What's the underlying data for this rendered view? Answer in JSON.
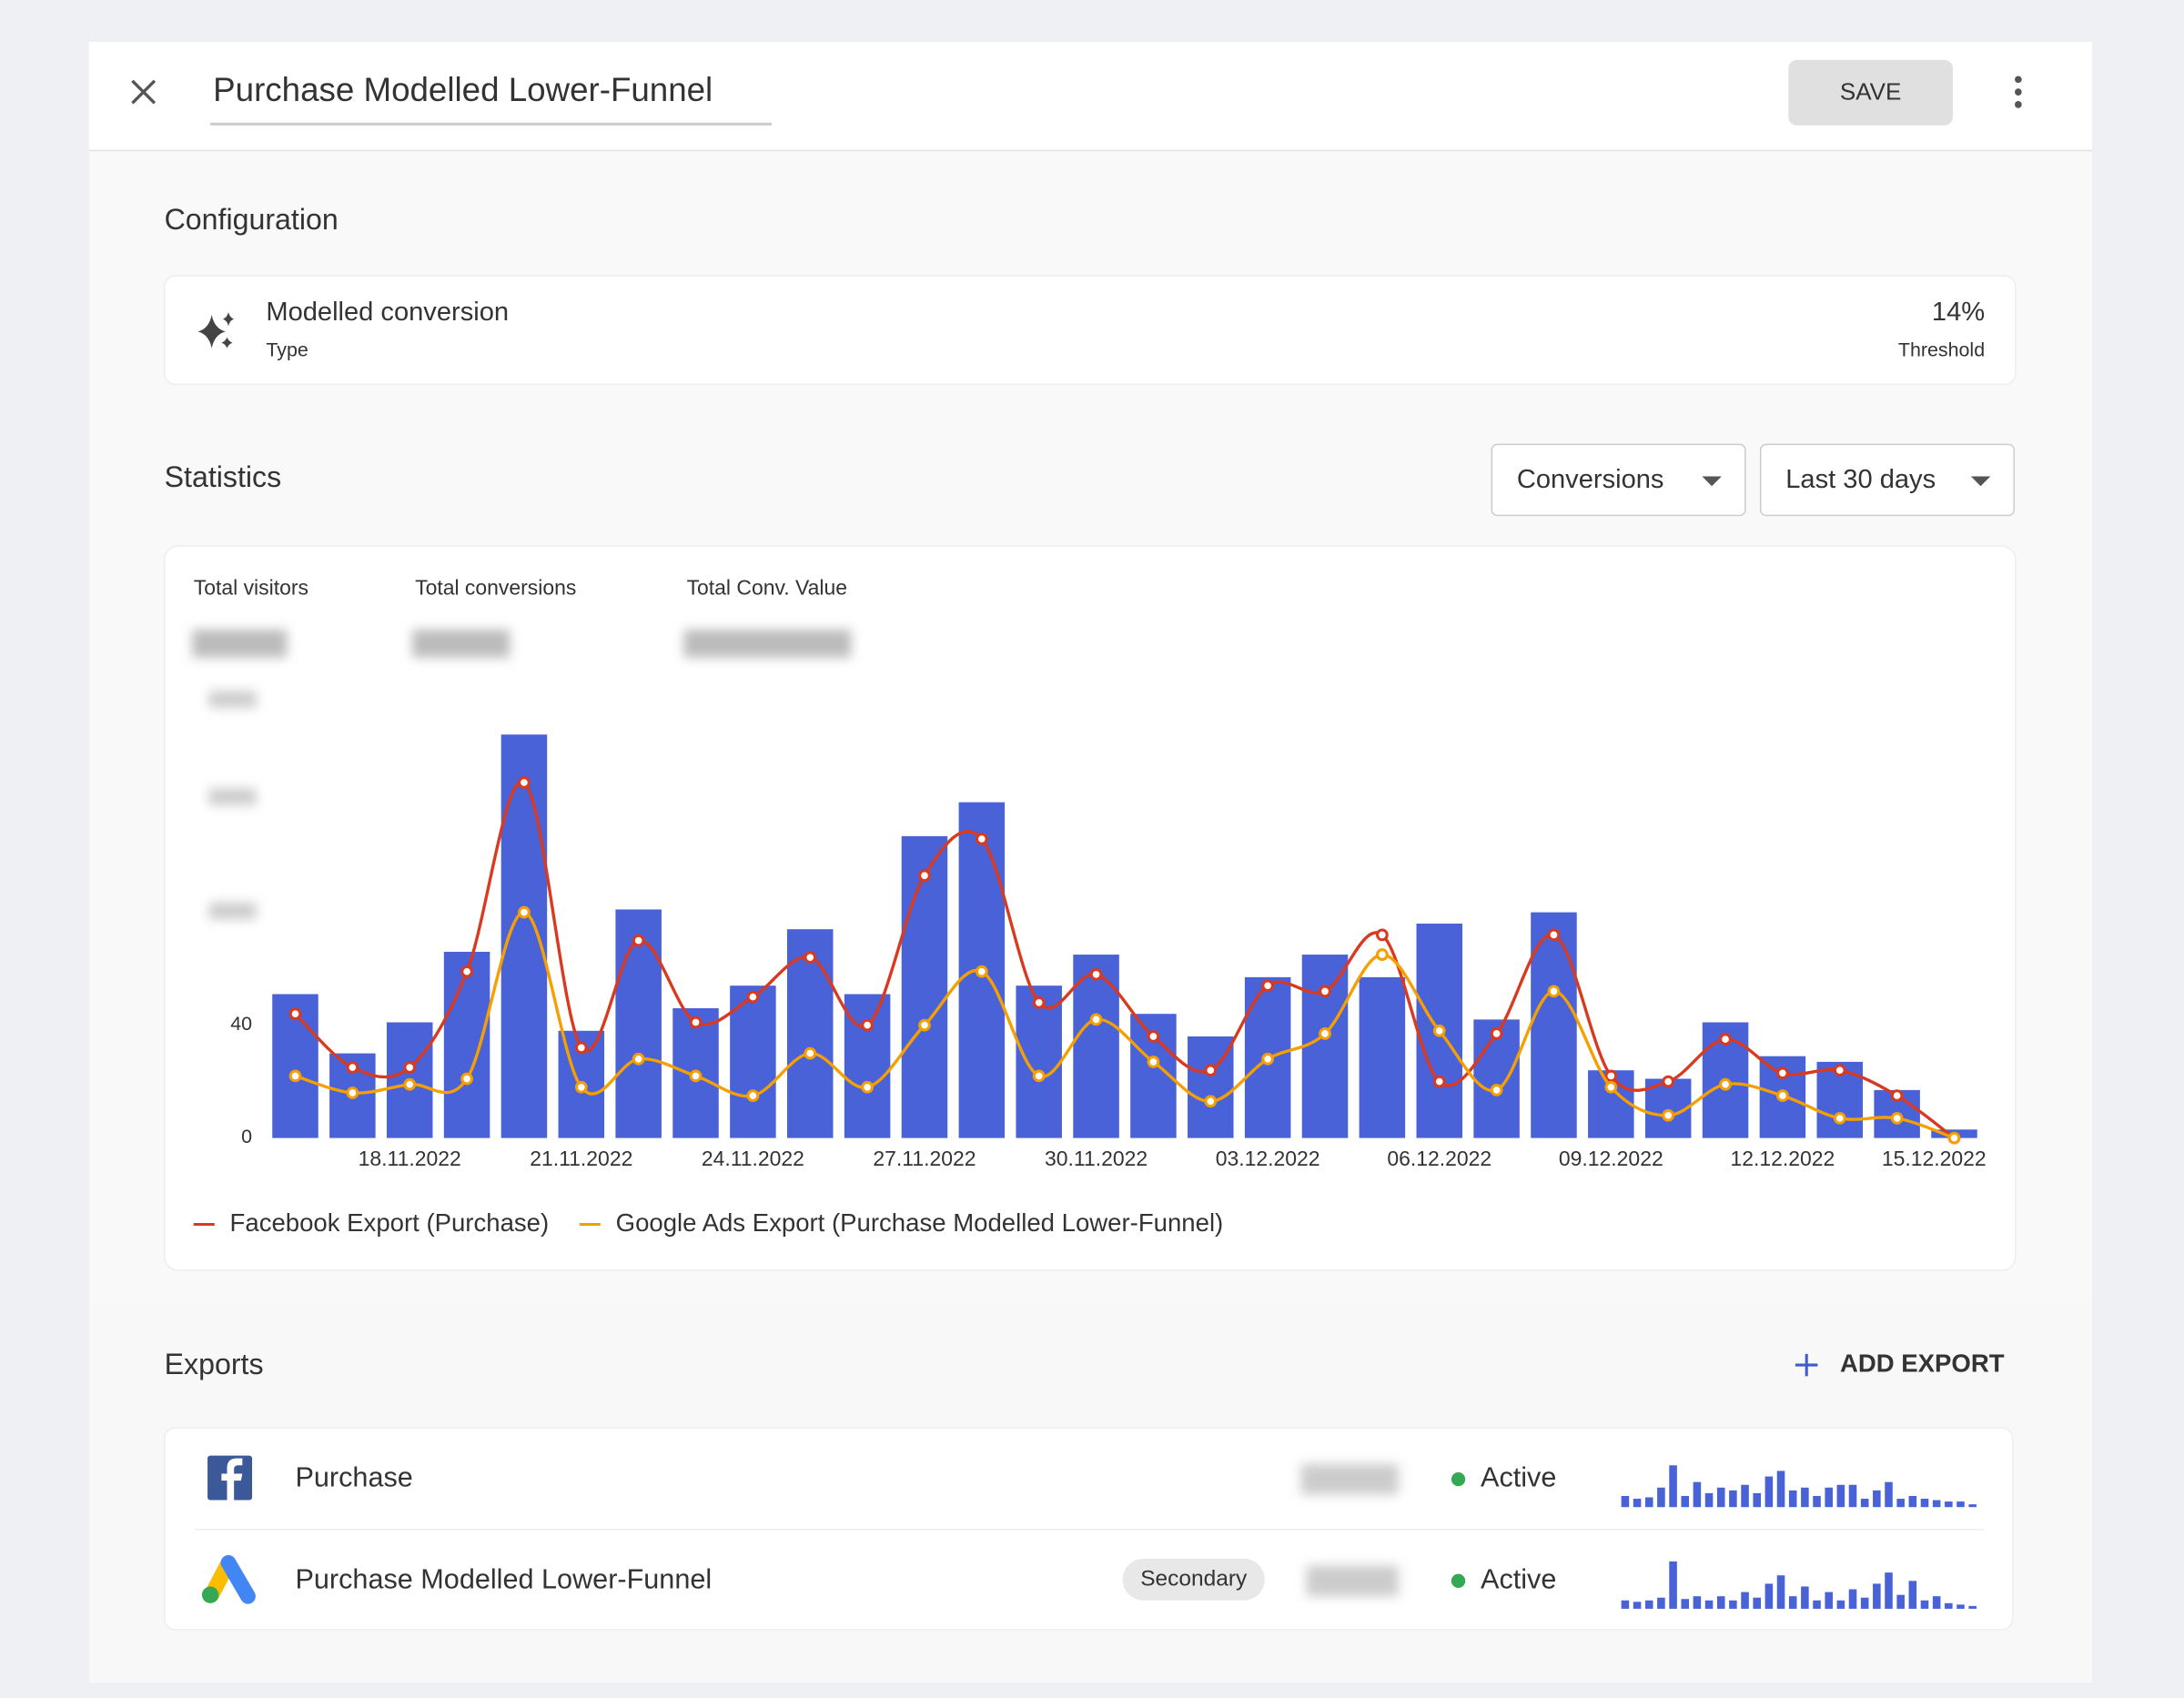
{
  "header": {
    "title": "Purchase Modelled Lower-Funnel",
    "save": "SAVE"
  },
  "configuration": {
    "heading": "Configuration",
    "type_value": "Modelled conversion",
    "type_label": "Type",
    "threshold_value": "14%",
    "threshold_label": "Threshold"
  },
  "statistics": {
    "heading": "Statistics",
    "metric_select": "Conversions",
    "range_select": "Last 30 days",
    "kpis": [
      "Total visitors",
      "Total conversions",
      "Total Conv. Value"
    ]
  },
  "chart_data": {
    "type": "bar",
    "categories": [
      null,
      null,
      "18.11.2022",
      null,
      null,
      "21.11.2022",
      null,
      null,
      "24.11.2022",
      null,
      null,
      "27.11.2022",
      null,
      null,
      "30.11.2022",
      null,
      null,
      "03.12.2022",
      null,
      null,
      "06.12.2022",
      null,
      null,
      "09.12.2022",
      null,
      null,
      "12.12.2022",
      null,
      null,
      "15.12.2022"
    ],
    "bar_color": "#4a62d8",
    "bar_values": [
      51,
      30,
      41,
      66,
      143,
      38,
      81,
      46,
      54,
      74,
      51,
      107,
      119,
      54,
      65,
      44,
      36,
      57,
      65,
      57,
      76,
      42,
      80,
      24,
      21,
      41,
      29,
      27,
      17,
      3
    ],
    "series": [
      {
        "name": "Facebook Export (Purchase)",
        "color": "#d93a1f",
        "values": [
          44,
          25,
          25,
          59,
          126,
          32,
          70,
          41,
          50,
          64,
          40,
          93,
          106,
          48,
          58,
          36,
          24,
          54,
          52,
          72,
          20,
          37,
          72,
          22,
          20,
          35,
          23,
          24,
          15,
          0
        ]
      },
      {
        "name": "Google Ads Export (Purchase Modelled Lower-Funnel)",
        "color": "#f5a000",
        "values": [
          22,
          16,
          19,
          21,
          80,
          18,
          28,
          22,
          15,
          30,
          18,
          40,
          59,
          22,
          42,
          27,
          13,
          28,
          37,
          65,
          38,
          17,
          52,
          18,
          8,
          19,
          15,
          7,
          7,
          0
        ]
      }
    ],
    "ylim": [
      0,
      156
    ],
    "yticks": [
      0,
      40
    ],
    "legend": "bottom-left"
  },
  "exports": {
    "heading": "Exports",
    "add": "ADD EXPORT",
    "rows": [
      {
        "name": "Purchase",
        "status": "Active",
        "trend": [
          8,
          6,
          7,
          14,
          30,
          8,
          18,
          10,
          14,
          12,
          16,
          10,
          22,
          26,
          12,
          14,
          8,
          14,
          16,
          16,
          6,
          12,
          18,
          6,
          8,
          6,
          5,
          4,
          4,
          2
        ]
      },
      {
        "name": "Purchase Modelled Lower-Funnel",
        "tag": "Secondary",
        "status": "Active",
        "trend": [
          6,
          5,
          6,
          8,
          34,
          7,
          9,
          6,
          9,
          6,
          12,
          8,
          18,
          24,
          9,
          16,
          6,
          12,
          6,
          14,
          8,
          18,
          26,
          10,
          20,
          6,
          9,
          4,
          3,
          2
        ]
      }
    ]
  }
}
